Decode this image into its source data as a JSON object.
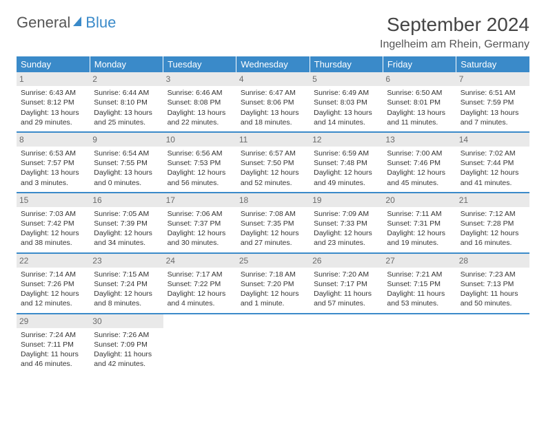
{
  "brand": {
    "part1": "General",
    "part2": "Blue"
  },
  "title": "September 2024",
  "location": "Ingelheim am Rhein, Germany",
  "colors": {
    "header_bg": "#3a8ac9",
    "header_text": "#ffffff",
    "daynum_bg": "#e9e9e9",
    "daynum_text": "#6a6a6a",
    "body_text": "#333333",
    "page_bg": "#ffffff",
    "divider": "#3a8ac9"
  },
  "fonts": {
    "base_family": "Arial",
    "title_size_pt": 22,
    "cell_size_pt": 8
  },
  "weekdays": [
    "Sunday",
    "Monday",
    "Tuesday",
    "Wednesday",
    "Thursday",
    "Friday",
    "Saturday"
  ],
  "weeks": [
    [
      {
        "n": "1",
        "sr": "Sunrise: 6:43 AM",
        "ss": "Sunset: 8:12 PM",
        "d1": "Daylight: 13 hours",
        "d2": "and 29 minutes."
      },
      {
        "n": "2",
        "sr": "Sunrise: 6:44 AM",
        "ss": "Sunset: 8:10 PM",
        "d1": "Daylight: 13 hours",
        "d2": "and 25 minutes."
      },
      {
        "n": "3",
        "sr": "Sunrise: 6:46 AM",
        "ss": "Sunset: 8:08 PM",
        "d1": "Daylight: 13 hours",
        "d2": "and 22 minutes."
      },
      {
        "n": "4",
        "sr": "Sunrise: 6:47 AM",
        "ss": "Sunset: 8:06 PM",
        "d1": "Daylight: 13 hours",
        "d2": "and 18 minutes."
      },
      {
        "n": "5",
        "sr": "Sunrise: 6:49 AM",
        "ss": "Sunset: 8:03 PM",
        "d1": "Daylight: 13 hours",
        "d2": "and 14 minutes."
      },
      {
        "n": "6",
        "sr": "Sunrise: 6:50 AM",
        "ss": "Sunset: 8:01 PM",
        "d1": "Daylight: 13 hours",
        "d2": "and 11 minutes."
      },
      {
        "n": "7",
        "sr": "Sunrise: 6:51 AM",
        "ss": "Sunset: 7:59 PM",
        "d1": "Daylight: 13 hours",
        "d2": "and 7 minutes."
      }
    ],
    [
      {
        "n": "8",
        "sr": "Sunrise: 6:53 AM",
        "ss": "Sunset: 7:57 PM",
        "d1": "Daylight: 13 hours",
        "d2": "and 3 minutes."
      },
      {
        "n": "9",
        "sr": "Sunrise: 6:54 AM",
        "ss": "Sunset: 7:55 PM",
        "d1": "Daylight: 13 hours",
        "d2": "and 0 minutes."
      },
      {
        "n": "10",
        "sr": "Sunrise: 6:56 AM",
        "ss": "Sunset: 7:53 PM",
        "d1": "Daylight: 12 hours",
        "d2": "and 56 minutes."
      },
      {
        "n": "11",
        "sr": "Sunrise: 6:57 AM",
        "ss": "Sunset: 7:50 PM",
        "d1": "Daylight: 12 hours",
        "d2": "and 52 minutes."
      },
      {
        "n": "12",
        "sr": "Sunrise: 6:59 AM",
        "ss": "Sunset: 7:48 PM",
        "d1": "Daylight: 12 hours",
        "d2": "and 49 minutes."
      },
      {
        "n": "13",
        "sr": "Sunrise: 7:00 AM",
        "ss": "Sunset: 7:46 PM",
        "d1": "Daylight: 12 hours",
        "d2": "and 45 minutes."
      },
      {
        "n": "14",
        "sr": "Sunrise: 7:02 AM",
        "ss": "Sunset: 7:44 PM",
        "d1": "Daylight: 12 hours",
        "d2": "and 41 minutes."
      }
    ],
    [
      {
        "n": "15",
        "sr": "Sunrise: 7:03 AM",
        "ss": "Sunset: 7:42 PM",
        "d1": "Daylight: 12 hours",
        "d2": "and 38 minutes."
      },
      {
        "n": "16",
        "sr": "Sunrise: 7:05 AM",
        "ss": "Sunset: 7:39 PM",
        "d1": "Daylight: 12 hours",
        "d2": "and 34 minutes."
      },
      {
        "n": "17",
        "sr": "Sunrise: 7:06 AM",
        "ss": "Sunset: 7:37 PM",
        "d1": "Daylight: 12 hours",
        "d2": "and 30 minutes."
      },
      {
        "n": "18",
        "sr": "Sunrise: 7:08 AM",
        "ss": "Sunset: 7:35 PM",
        "d1": "Daylight: 12 hours",
        "d2": "and 27 minutes."
      },
      {
        "n": "19",
        "sr": "Sunrise: 7:09 AM",
        "ss": "Sunset: 7:33 PM",
        "d1": "Daylight: 12 hours",
        "d2": "and 23 minutes."
      },
      {
        "n": "20",
        "sr": "Sunrise: 7:11 AM",
        "ss": "Sunset: 7:31 PM",
        "d1": "Daylight: 12 hours",
        "d2": "and 19 minutes."
      },
      {
        "n": "21",
        "sr": "Sunrise: 7:12 AM",
        "ss": "Sunset: 7:28 PM",
        "d1": "Daylight: 12 hours",
        "d2": "and 16 minutes."
      }
    ],
    [
      {
        "n": "22",
        "sr": "Sunrise: 7:14 AM",
        "ss": "Sunset: 7:26 PM",
        "d1": "Daylight: 12 hours",
        "d2": "and 12 minutes."
      },
      {
        "n": "23",
        "sr": "Sunrise: 7:15 AM",
        "ss": "Sunset: 7:24 PM",
        "d1": "Daylight: 12 hours",
        "d2": "and 8 minutes."
      },
      {
        "n": "24",
        "sr": "Sunrise: 7:17 AM",
        "ss": "Sunset: 7:22 PM",
        "d1": "Daylight: 12 hours",
        "d2": "and 4 minutes."
      },
      {
        "n": "25",
        "sr": "Sunrise: 7:18 AM",
        "ss": "Sunset: 7:20 PM",
        "d1": "Daylight: 12 hours",
        "d2": "and 1 minute."
      },
      {
        "n": "26",
        "sr": "Sunrise: 7:20 AM",
        "ss": "Sunset: 7:17 PM",
        "d1": "Daylight: 11 hours",
        "d2": "and 57 minutes."
      },
      {
        "n": "27",
        "sr": "Sunrise: 7:21 AM",
        "ss": "Sunset: 7:15 PM",
        "d1": "Daylight: 11 hours",
        "d2": "and 53 minutes."
      },
      {
        "n": "28",
        "sr": "Sunrise: 7:23 AM",
        "ss": "Sunset: 7:13 PM",
        "d1": "Daylight: 11 hours",
        "d2": "and 50 minutes."
      }
    ],
    [
      {
        "n": "29",
        "sr": "Sunrise: 7:24 AM",
        "ss": "Sunset: 7:11 PM",
        "d1": "Daylight: 11 hours",
        "d2": "and 46 minutes."
      },
      {
        "n": "30",
        "sr": "Sunrise: 7:26 AM",
        "ss": "Sunset: 7:09 PM",
        "d1": "Daylight: 11 hours",
        "d2": "and 42 minutes."
      },
      null,
      null,
      null,
      null,
      null
    ]
  ]
}
